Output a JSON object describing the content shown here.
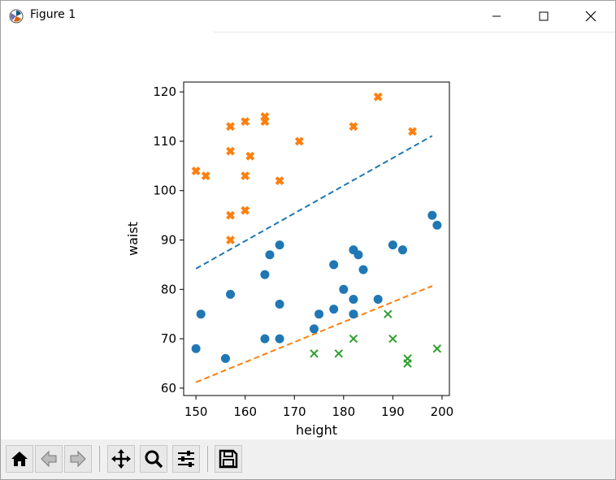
{
  "window": {
    "title": "Figure 1"
  },
  "toolbar": {
    "buttons": [
      "home-icon",
      "back-icon",
      "forward-icon",
      "pan-icon",
      "zoom-icon",
      "configure-icon",
      "save-icon"
    ]
  },
  "chart_data": {
    "type": "scatter",
    "title": "",
    "xlabel": "height",
    "ylabel": "waist",
    "xlim": [
      147.5,
      201.5
    ],
    "ylim": [
      58.5,
      122
    ],
    "xticks": [
      150,
      160,
      170,
      180,
      190,
      200
    ],
    "yticks": [
      60,
      70,
      80,
      90,
      100,
      110,
      120
    ],
    "grid": false,
    "legend": "none",
    "series": [
      {
        "marker": "circle",
        "color": "#1f77b4",
        "points": [
          [
            150,
            68
          ],
          [
            151,
            75
          ],
          [
            156,
            66
          ],
          [
            157,
            79
          ],
          [
            164,
            83
          ],
          [
            164,
            70
          ],
          [
            165,
            87
          ],
          [
            167,
            89
          ],
          [
            167,
            77
          ],
          [
            167,
            70
          ],
          [
            174,
            72
          ],
          [
            175,
            75
          ],
          [
            178,
            85
          ],
          [
            178,
            76
          ],
          [
            180,
            80
          ],
          [
            182,
            88
          ],
          [
            182,
            78
          ],
          [
            182,
            75
          ],
          [
            183,
            87
          ],
          [
            184,
            84
          ],
          [
            187,
            78
          ],
          [
            190,
            89
          ],
          [
            192,
            88
          ],
          [
            198,
            95
          ],
          [
            199,
            93
          ]
        ]
      },
      {
        "marker": "X",
        "color": "#ff7f0e",
        "points": [
          [
            150,
            104
          ],
          [
            152,
            103
          ],
          [
            157,
            113
          ],
          [
            157,
            108
          ],
          [
            157,
            95
          ],
          [
            157,
            90
          ],
          [
            160,
            114
          ],
          [
            160,
            103
          ],
          [
            160,
            96
          ],
          [
            161,
            107
          ],
          [
            164,
            115
          ],
          [
            164,
            114
          ],
          [
            167,
            102
          ],
          [
            171,
            110
          ],
          [
            182,
            113
          ],
          [
            187,
            119
          ],
          [
            194,
            112
          ]
        ]
      },
      {
        "marker": "x",
        "color": "#2ca02c",
        "points": [
          [
            174,
            67
          ],
          [
            179,
            67
          ],
          [
            182,
            70
          ],
          [
            189,
            75
          ],
          [
            190,
            70
          ],
          [
            193,
            66
          ],
          [
            193,
            65
          ],
          [
            199,
            68
          ]
        ]
      }
    ],
    "lines": [
      {
        "style": "dashed",
        "color": "#1f77b4",
        "points": [
          [
            150,
            84.2
          ],
          [
            198,
            111.1
          ]
        ]
      },
      {
        "style": "dashed",
        "color": "#ff7f0e",
        "points": [
          [
            150,
            61.2
          ],
          [
            198,
            80.7
          ]
        ]
      }
    ]
  }
}
